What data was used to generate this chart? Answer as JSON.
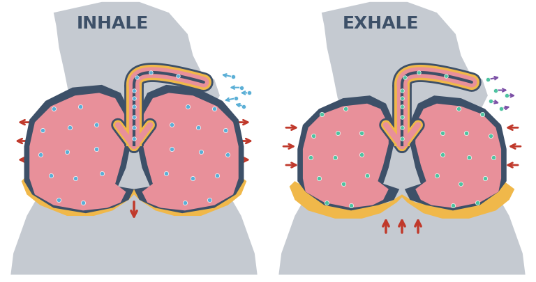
{
  "bg_color": "#ffffff",
  "body_color": "#c5cad1",
  "lung_pink": "#e8909a",
  "lung_dark": "#3d5068",
  "airway_pink": "#e8909a",
  "airway_dark": "#3d5068",
  "airway_outer": "#f0b84a",
  "diaphragm_color": "#f0b84a",
  "arrow_red": "#c0392b",
  "arrow_blue_dark": "#3d5068",
  "dot_blue_inhale": "#5bafd6",
  "dot_teal_exhale": "#4fc3a1",
  "arrow_purple": "#7b4fa6",
  "inhale_title": "INHALE",
  "exhale_title": "EXHALE",
  "title_color": "#3d5068",
  "title_fontsize": 18,
  "particle_color_inhale": "#5bafd6",
  "particle_color_exhale": "#7b4fa6"
}
